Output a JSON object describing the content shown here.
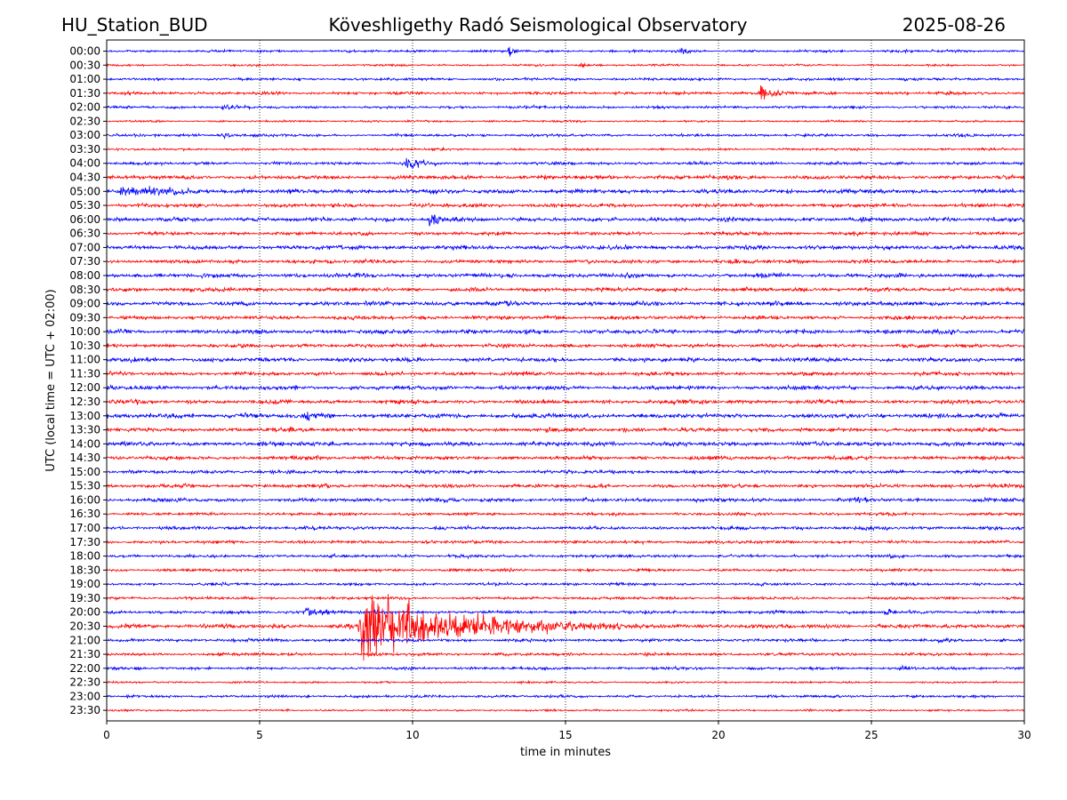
{
  "header": {
    "station": "HU_Station_BUD",
    "observatory": "Köveshligethy Radó Seismological Observatory",
    "date": "2025-08-26"
  },
  "chart_data": {
    "type": "line",
    "title": "Köveshligethy Radó Seismological Observatory",
    "xlabel": "time in minutes",
    "ylabel": "UTC (local time = UTC + 02:00)",
    "xlim": [
      0,
      30
    ],
    "x_ticks": [
      "0",
      "5",
      "10",
      "15",
      "20",
      "25",
      "30"
    ],
    "grid": "vertical dotted at x ticks",
    "colors": {
      "even_rows": "#0000ff",
      "odd_rows": "#ff0000",
      "grid": "#000000"
    },
    "row_interval_minutes": 30,
    "row_labels": [
      "00:00",
      "00:30",
      "01:00",
      "01:30",
      "02:00",
      "02:30",
      "03:00",
      "03:30",
      "04:00",
      "04:30",
      "05:00",
      "05:30",
      "06:00",
      "06:30",
      "07:00",
      "07:30",
      "08:00",
      "08:30",
      "09:00",
      "09:30",
      "10:00",
      "10:30",
      "11:00",
      "11:30",
      "12:00",
      "12:30",
      "13:00",
      "13:30",
      "14:00",
      "14:30",
      "15:00",
      "15:30",
      "16:00",
      "16:30",
      "17:00",
      "17:30",
      "18:00",
      "18:30",
      "19:00",
      "19:30",
      "20:00",
      "20:30",
      "21:00",
      "21:30",
      "22:00",
      "22:30",
      "23:00",
      "23:30"
    ],
    "noise_level": [
      0.1,
      0.08,
      0.11,
      0.12,
      0.11,
      0.08,
      0.11,
      0.09,
      0.12,
      0.16,
      0.18,
      0.15,
      0.17,
      0.14,
      0.17,
      0.15,
      0.17,
      0.16,
      0.17,
      0.15,
      0.17,
      0.15,
      0.17,
      0.15,
      0.17,
      0.16,
      0.18,
      0.16,
      0.17,
      0.15,
      0.14,
      0.15,
      0.15,
      0.12,
      0.14,
      0.13,
      0.12,
      0.11,
      0.11,
      0.11,
      0.13,
      0.18,
      0.13,
      0.12,
      0.11,
      0.08,
      0.11,
      0.08
    ],
    "events": [
      {
        "row": 0,
        "t": 13.2,
        "dur": 0.4,
        "amp": 0.5
      },
      {
        "row": 0,
        "t": 18.8,
        "dur": 0.8,
        "amp": 0.25
      },
      {
        "row": 1,
        "t": 15.5,
        "dur": 0.8,
        "amp": 0.2
      },
      {
        "row": 3,
        "t": 21.4,
        "dur": 1.0,
        "amp": 0.85
      },
      {
        "row": 4,
        "t": 3.8,
        "dur": 0.8,
        "amp": 0.25
      },
      {
        "row": 6,
        "t": 3.8,
        "dur": 0.8,
        "amp": 0.25
      },
      {
        "row": 8,
        "t": 9.8,
        "dur": 1.0,
        "amp": 0.55
      },
      {
        "row": 10,
        "t": 0.5,
        "dur": 3.0,
        "amp": 0.45
      },
      {
        "row": 12,
        "t": 10.6,
        "dur": 0.6,
        "amp": 0.75
      },
      {
        "row": 26,
        "t": 6.5,
        "dur": 1.2,
        "amp": 0.4
      },
      {
        "row": 32,
        "t": 24.5,
        "dur": 0.6,
        "amp": 0.35
      },
      {
        "row": 40,
        "t": 6.5,
        "dur": 1.5,
        "amp": 0.45
      },
      {
        "row": 40,
        "t": 25.5,
        "dur": 0.3,
        "amp": 0.45
      },
      {
        "row": 41,
        "t": 8.3,
        "dur": 8.5,
        "amp": 3.0
      },
      {
        "row": 44,
        "t": 26.0,
        "dur": 0.6,
        "amp": 0.3
      }
    ]
  }
}
